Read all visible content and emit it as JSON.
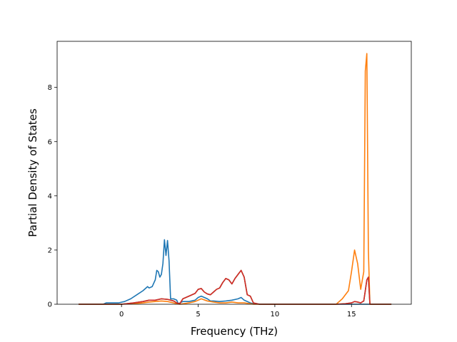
{
  "chart_data": {
    "type": "line",
    "title": "",
    "xlabel": "Frequency (THz)",
    "ylabel": "Partial Density of States",
    "xlim": [
      -4.2,
      18.9
    ],
    "ylim": [
      0,
      9.7
    ],
    "xticks": [
      0,
      5,
      10,
      15
    ],
    "yticks": [
      0,
      2,
      4,
      6,
      8
    ],
    "grid": false,
    "series": [
      {
        "color": "#1f77b4",
        "x": [
          -2.8,
          -1.2,
          -1.0,
          -0.6,
          -0.2,
          0.2,
          0.6,
          1.0,
          1.4,
          1.7,
          1.8,
          2.0,
          2.2,
          2.3,
          2.4,
          2.5,
          2.6,
          2.7,
          2.8,
          2.9,
          3.0,
          3.1,
          3.2,
          3.4,
          3.6,
          3.7,
          4.0,
          4.4,
          4.8,
          5.0,
          5.2,
          5.4,
          5.6,
          5.8,
          6.0,
          6.4,
          6.8,
          7.2,
          7.6,
          7.8,
          8.0,
          8.4,
          8.6,
          9.0,
          12.0,
          14.0,
          14.8,
          15.0,
          15.4,
          15.8,
          16.0,
          16.2,
          17.6
        ],
        "y": [
          0,
          0,
          0.05,
          0.05,
          0.05,
          0.1,
          0.2,
          0.35,
          0.5,
          0.65,
          0.6,
          0.65,
          0.9,
          1.25,
          1.2,
          1.0,
          1.1,
          1.5,
          2.38,
          1.8,
          2.35,
          1.6,
          0.2,
          0.2,
          0.15,
          0.02,
          0.1,
          0.1,
          0.15,
          0.25,
          0.3,
          0.25,
          0.2,
          0.12,
          0.12,
          0.1,
          0.12,
          0.15,
          0.2,
          0.25,
          0.15,
          0.05,
          0.02,
          0,
          0,
          0,
          0,
          0,
          0,
          0,
          0,
          0,
          0
        ]
      },
      {
        "color": "#ff7f0e",
        "x": [
          -2.8,
          0.0,
          0.8,
          1.4,
          1.8,
          2.2,
          2.6,
          3.0,
          3.4,
          3.6,
          3.8,
          4.4,
          4.8,
          5.2,
          5.6,
          6.0,
          6.4,
          6.8,
          7.2,
          7.6,
          8.0,
          8.4,
          8.6,
          9.0,
          12.0,
          14.0,
          14.4,
          14.8,
          15.0,
          15.2,
          15.4,
          15.6,
          15.8,
          15.9,
          16.0,
          16.1,
          16.2,
          17.6
        ],
        "y": [
          0,
          0,
          0.02,
          0.05,
          0.08,
          0.1,
          0.12,
          0.1,
          0.05,
          0.02,
          0,
          0.05,
          0.1,
          0.2,
          0.12,
          0.08,
          0.05,
          0.05,
          0.08,
          0.05,
          0.05,
          0.02,
          0,
          0,
          0,
          0,
          0.2,
          0.5,
          1.2,
          2.0,
          1.5,
          0.55,
          1.2,
          8.6,
          9.25,
          2.0,
          0,
          0
        ]
      },
      {
        "color": "#2ca02c",
        "x": [
          -2.8,
          0.0,
          0.8,
          1.4,
          1.8,
          2.2,
          2.6,
          3.0,
          3.4,
          3.6,
          3.8,
          4.0,
          4.4,
          4.8,
          5.0,
          5.2,
          5.4,
          5.6,
          5.8,
          6.0,
          6.2,
          6.4,
          6.6,
          6.8,
          7.0,
          7.2,
          7.4,
          7.6,
          7.8,
          8.0,
          8.2,
          8.4,
          8.6,
          9.0,
          12.0,
          14.0,
          14.6,
          15.0,
          15.2,
          15.4,
          15.6,
          15.8,
          15.9,
          16.0,
          16.1,
          16.2,
          17.6
        ],
        "y": [
          0,
          0,
          0.05,
          0.1,
          0.15,
          0.15,
          0.2,
          0.18,
          0.12,
          0.05,
          0.02,
          0.2,
          0.3,
          0.4,
          0.55,
          0.58,
          0.45,
          0.38,
          0.35,
          0.45,
          0.55,
          0.6,
          0.8,
          0.95,
          0.9,
          0.75,
          0.95,
          1.1,
          1.25,
          1.0,
          0.35,
          0.3,
          0.05,
          0,
          0,
          0,
          0.02,
          0.05,
          0.1,
          0.08,
          0.05,
          0.12,
          0.5,
          0.9,
          1.0,
          0,
          0
        ]
      },
      {
        "color": "#d62728",
        "x": [
          -2.8,
          0.0,
          0.8,
          1.4,
          1.8,
          2.2,
          2.6,
          3.0,
          3.4,
          3.6,
          3.8,
          4.0,
          4.4,
          4.8,
          5.0,
          5.2,
          5.4,
          5.6,
          5.8,
          6.0,
          6.2,
          6.4,
          6.6,
          6.8,
          7.0,
          7.2,
          7.4,
          7.6,
          7.8,
          8.0,
          8.2,
          8.4,
          8.6,
          9.0,
          12.0,
          14.0,
          14.6,
          15.0,
          15.2,
          15.4,
          15.6,
          15.8,
          15.9,
          16.0,
          16.1,
          16.2,
          17.6
        ],
        "y": [
          0,
          0,
          0.05,
          0.1,
          0.15,
          0.15,
          0.2,
          0.18,
          0.12,
          0.05,
          0.02,
          0.2,
          0.3,
          0.4,
          0.55,
          0.58,
          0.45,
          0.38,
          0.35,
          0.45,
          0.55,
          0.6,
          0.8,
          0.95,
          0.9,
          0.75,
          0.95,
          1.1,
          1.25,
          1.0,
          0.35,
          0.3,
          0.05,
          0,
          0,
          0,
          0.02,
          0.05,
          0.1,
          0.08,
          0.05,
          0.12,
          0.5,
          0.9,
          1.0,
          0,
          0
        ]
      }
    ]
  }
}
